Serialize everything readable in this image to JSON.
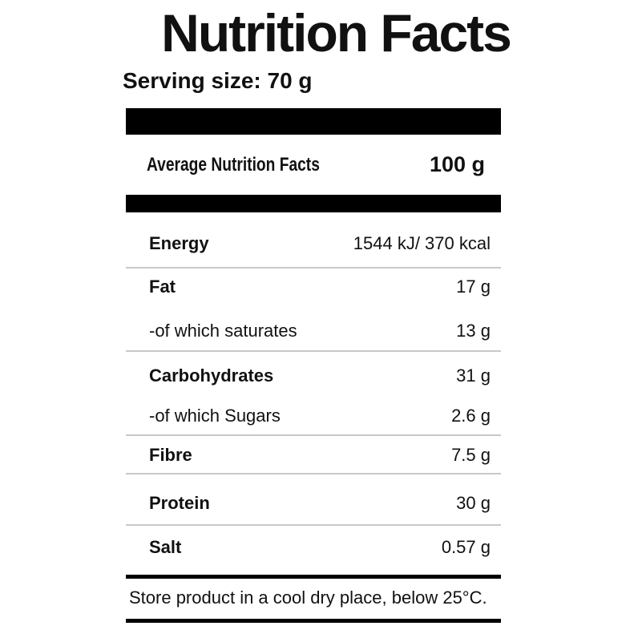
{
  "title": "Nutrition Facts",
  "serving": {
    "text": "Serving size: 70 g"
  },
  "header": {
    "label": "Average Nutrition Facts",
    "amount": "100 g"
  },
  "rows": [
    {
      "label": "Energy",
      "value": "1544 kJ/ 370 kcal"
    },
    {
      "label": "Fat",
      "value": "17 g"
    },
    {
      "label": "-of which saturates",
      "value": "13 g"
    },
    {
      "label": "Carbohydrates",
      "value": "31 g"
    },
    {
      "label": "-of which Sugars",
      "value": "2.6 g"
    },
    {
      "label": "Fibre",
      "value": "7.5 g"
    },
    {
      "label": "Protein",
      "value": "30 g"
    },
    {
      "label": "Salt",
      "value": "0.57 g"
    }
  ],
  "footer": {
    "storage_note": "Store product in a cool dry place, below 25°C."
  },
  "colors": {
    "text": "#111111",
    "bar": "#000000",
    "divider": "#c8c8c8",
    "background": "#ffffff"
  }
}
